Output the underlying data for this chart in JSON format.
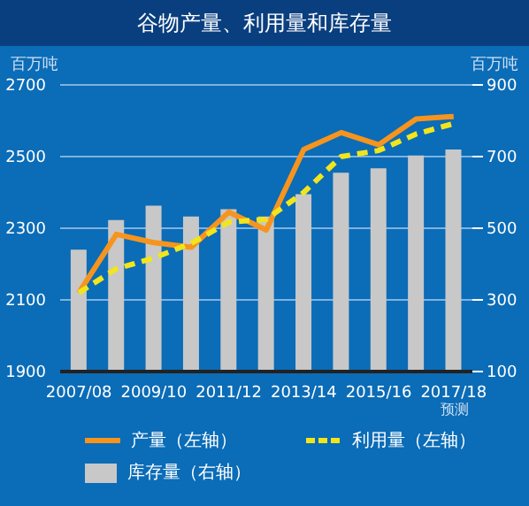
{
  "chart_data": {
    "type": "line",
    "title": "谷物产量、利用量和库存量",
    "ylabel": "百万吨",
    "y2label": "百万吨",
    "categories": [
      "2007/08",
      null,
      "2009/10",
      null,
      "2011/12",
      null,
      "2013/14",
      null,
      "2015/16",
      null,
      "2017/18"
    ],
    "series": [
      {
        "name": "产量（左轴）",
        "color": "#f7941d",
        "line_style": "solid",
        "values": [
          2120,
          2283,
          2260,
          2247,
          2345,
          2295,
          2520,
          2567,
          2533,
          2605,
          2612
        ]
      },
      {
        "name": "利用量（左轴）",
        "color": "#f2e51c",
        "line_style": "dashed",
        "values": [
          2120,
          2187,
          2217,
          2258,
          2317,
          2325,
          2400,
          2500,
          2517,
          2563,
          2592
        ]
      },
      {
        "type": "bar",
        "name": "库存量（右轴）",
        "color": "#c8c8c8",
        "axis": "y2",
        "values": [
          440,
          523,
          563,
          533,
          553,
          533,
          595,
          655,
          667,
          703,
          720
        ]
      }
    ],
    "ylim": [
      1900,
      2700
    ],
    "yticks": [
      1900,
      2100,
      2300,
      2500,
      2700
    ],
    "y2lim": [
      100,
      900
    ],
    "y2ticks": [
      100,
      300,
      500,
      700,
      900
    ],
    "grid": "y",
    "marker": "none",
    "legend": "bottom",
    "annotations": [
      "预测"
    ]
  }
}
